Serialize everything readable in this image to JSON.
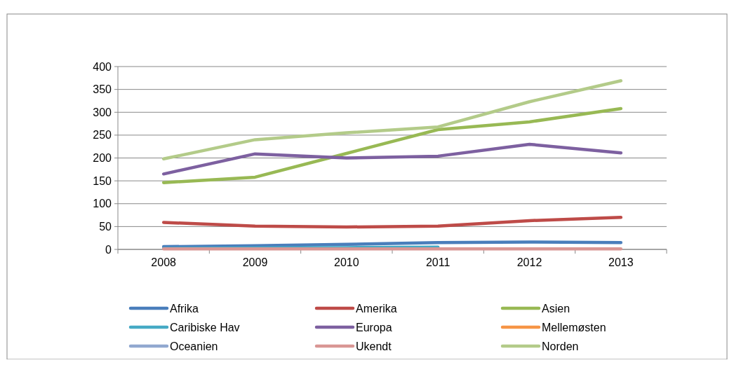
{
  "chart_data": {
    "type": "line",
    "categories": [
      "2008",
      "2009",
      "2010",
      "2011",
      "2012",
      "2013"
    ],
    "ylim": [
      0,
      400
    ],
    "yticks": [
      0,
      50,
      100,
      150,
      200,
      250,
      300,
      350,
      400
    ],
    "grid": "y",
    "legend": "bottom",
    "marker": "none",
    "line_style": "solid",
    "series": [
      {
        "name": "Afrika",
        "color": "#4a7ebb",
        "values": [
          6,
          8,
          11,
          15,
          16,
          15
        ]
      },
      {
        "name": "Amerika",
        "color": "#be4b48",
        "values": [
          59,
          51,
          49,
          51,
          63,
          70
        ]
      },
      {
        "name": "Asien",
        "color": "#98b954",
        "values": [
          146,
          158,
          210,
          262,
          279,
          308
        ]
      },
      {
        "name": "Caribiske Hav",
        "color": "#46aac5",
        "values": [
          2,
          3,
          4,
          5,
          null,
          null
        ]
      },
      {
        "name": "Europa",
        "color": "#7d60a0",
        "values": [
          165,
          209,
          200,
          204,
          230,
          211
        ]
      },
      {
        "name": "Mellemøsten",
        "color": "#f69546",
        "values": [
          null,
          null,
          null,
          null,
          null,
          null
        ]
      },
      {
        "name": "Oceanien",
        "color": "#91a8d0",
        "values": [
          null,
          null,
          null,
          null,
          null,
          null
        ]
      },
      {
        "name": "Ukendt",
        "color": "#d99694",
        "values": [
          1,
          1,
          1,
          1,
          1,
          1
        ]
      },
      {
        "name": "Norden",
        "color": "#b3cb89",
        "values": [
          198,
          240,
          255,
          268,
          323,
          369
        ]
      }
    ]
  }
}
